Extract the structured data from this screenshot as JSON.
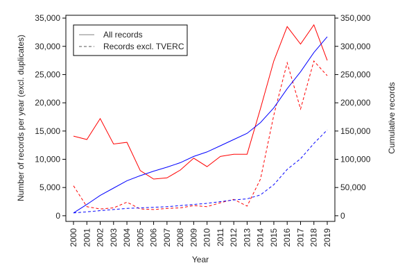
{
  "chart_data": {
    "type": "line",
    "title": "",
    "xlabel": "Year",
    "ylabel_left": "Number of records per year (excl. duplicates)",
    "ylabel_right": "Cumulative records",
    "x": [
      "2000",
      "2001",
      "2002",
      "2003",
      "2004",
      "2005",
      "2006",
      "2007",
      "2008",
      "2009",
      "2010",
      "2011",
      "2012",
      "2013",
      "2014",
      "2015",
      "2016",
      "2017",
      "2018",
      "2019"
    ],
    "ylim_left": [
      -1000,
      35500
    ],
    "ylim_right": [
      -10000,
      355000
    ],
    "yticks_left": [
      0,
      5000,
      10000,
      15000,
      20000,
      25000,
      30000,
      35000
    ],
    "yticks_left_labels": [
      "0",
      "5,000",
      "10,000",
      "15,000",
      "20,000",
      "25,000",
      "30,000",
      "35,000"
    ],
    "yticks_right": [
      0,
      50000,
      100000,
      150000,
      200000,
      250000,
      300000,
      350000
    ],
    "yticks_right_labels": [
      "0",
      "50,000",
      "100,000",
      "150,000",
      "200,000",
      "250,000",
      "300,000",
      "350,000"
    ],
    "legend": {
      "position": "top-left",
      "entries": [
        {
          "label": "All records",
          "style": "solid"
        },
        {
          "label": "Records excl. TVERC",
          "style": "dashed"
        }
      ]
    },
    "series": [
      {
        "key": "per_year_all",
        "axis": "left",
        "color": "#ff0000",
        "dash": "solid",
        "values": [
          14100,
          13500,
          17200,
          12700,
          13000,
          8000,
          6500,
          6700,
          8100,
          10200,
          8700,
          10500,
          10900,
          10900,
          19000,
          27400,
          33500,
          30400,
          33800,
          27500
        ]
      },
      {
        "key": "per_year_excl",
        "axis": "left",
        "color": "#ff0000",
        "dash": "dashed",
        "values": [
          5300,
          1600,
          1200,
          1400,
          2400,
          1200,
          1100,
          1300,
          1400,
          1800,
          1600,
          2300,
          2900,
          1700,
          6500,
          17800,
          27100,
          18900,
          27400,
          24800
        ]
      },
      {
        "key": "cumulative_all",
        "axis": "right",
        "color": "#0000ff",
        "dash": "solid",
        "values": [
          5000,
          20000,
          36000,
          49000,
          62000,
          71000,
          79000,
          86000,
          94000,
          105000,
          113000,
          124000,
          135000,
          146000,
          165000,
          191000,
          225000,
          255000,
          289000,
          317000
        ]
      },
      {
        "key": "cumulative_excl",
        "axis": "right",
        "color": "#0000ff",
        "dash": "dashed",
        "values": [
          5000,
          7000,
          9000,
          11000,
          13000,
          14000,
          15000,
          16000,
          18000,
          20000,
          22000,
          25000,
          28000,
          30000,
          37000,
          55000,
          82000,
          101000,
          128000,
          152000
        ]
      }
    ]
  }
}
